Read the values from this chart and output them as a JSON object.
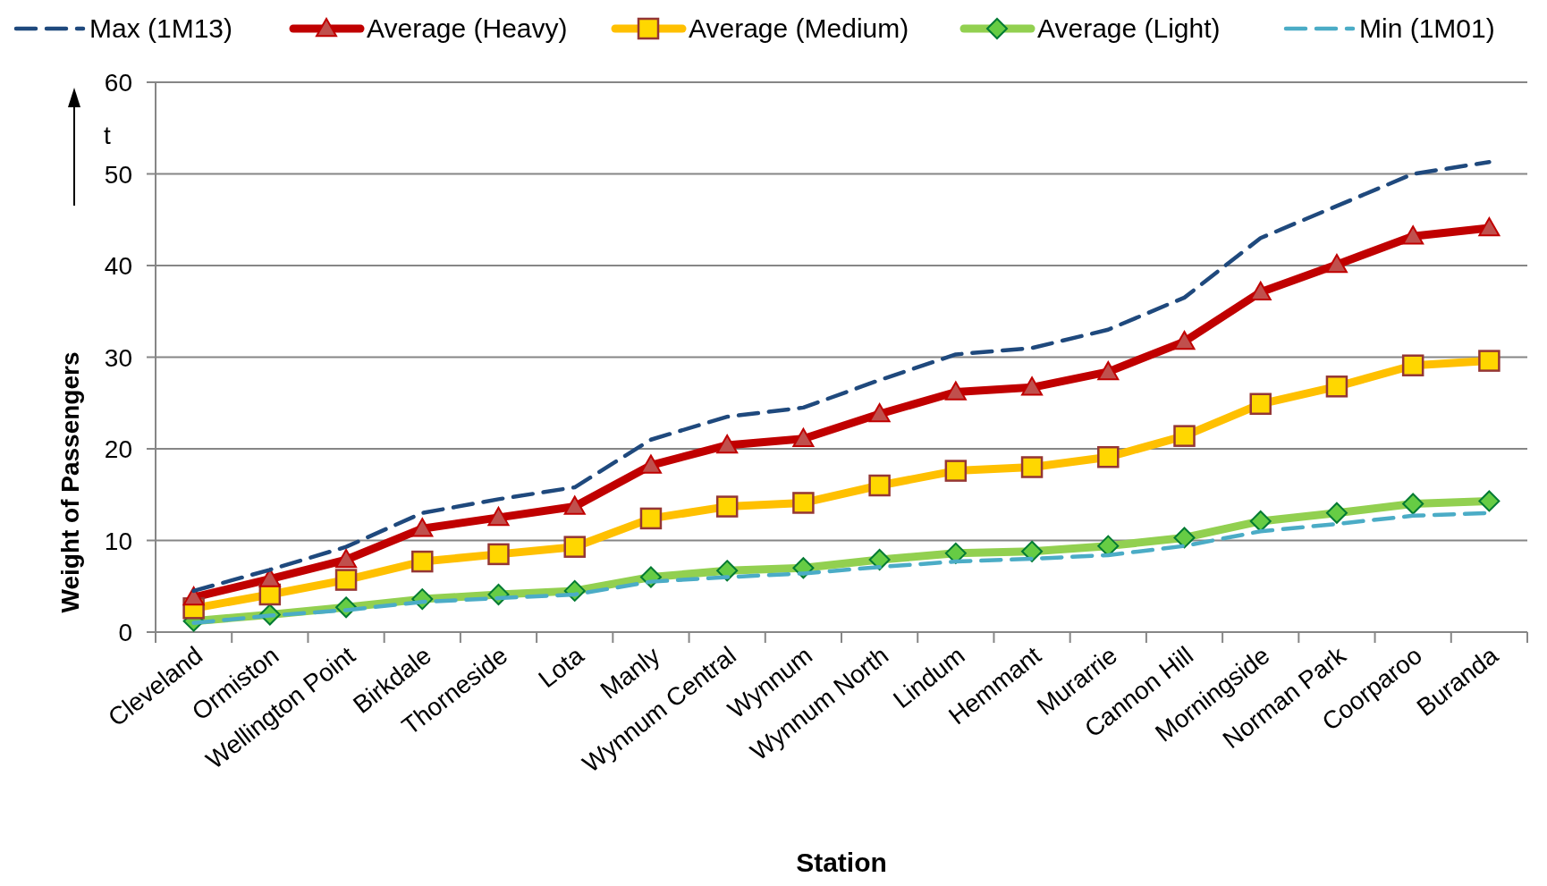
{
  "chart_data": {
    "type": "line",
    "xlabel": "Station",
    "ylabel": "Weight of Passengers",
    "annotations": [
      "t"
    ],
    "categories": [
      "Cleveland",
      "Ormiston",
      "Wellington Point",
      "Birkdale",
      "Thorneside",
      "Lota",
      "Manly",
      "Wynnum Central",
      "Wynnum",
      "Wynnum North",
      "Lindum",
      "Hemmant",
      "Murarrie",
      "Cannon Hill",
      "Morningside",
      "Norman Park",
      "Coorparoo",
      "Buranda"
    ],
    "series": [
      {
        "name": "Max (1M13)",
        "color": "#1f497d",
        "line_style": "dashed",
        "marker": "none",
        "values": [
          4.5,
          6.8,
          9.3,
          13,
          14.5,
          15.8,
          21,
          23.5,
          24.5,
          27.5,
          30.3,
          31,
          33,
          36.5,
          43,
          46.5,
          50,
          51.3
        ]
      },
      {
        "name": "Average (Heavy)",
        "color": "#c00000",
        "line_style": "solid",
        "marker": "triangle",
        "values": [
          3.8,
          5.8,
          7.9,
          11.3,
          12.5,
          13.7,
          18.2,
          20.4,
          21.1,
          23.8,
          26.2,
          26.7,
          28.4,
          31.7,
          37.1,
          40.1,
          43.2,
          44.1
        ]
      },
      {
        "name": "Average (Medium)",
        "color": "#ffc000",
        "line_style": "solid",
        "marker": "square",
        "values": [
          2.6,
          4.1,
          5.7,
          7.7,
          8.5,
          9.3,
          12.4,
          13.7,
          14.1,
          16,
          17.6,
          18,
          19.1,
          21.4,
          24.9,
          26.8,
          29.1,
          29.6
        ]
      },
      {
        "name": "Average (Light)",
        "color": "#92d050",
        "line_style": "solid",
        "marker": "diamond",
        "values": [
          1.2,
          1.9,
          2.7,
          3.6,
          4.1,
          4.5,
          6,
          6.7,
          7,
          7.9,
          8.6,
          8.8,
          9.4,
          10.3,
          12.1,
          13,
          14,
          14.3
        ]
      },
      {
        "name": "Min (1M01)",
        "color": "#4bacc6",
        "line_style": "dashed",
        "marker": "none",
        "values": [
          1,
          1.8,
          2.4,
          3.3,
          3.7,
          4.1,
          5.5,
          6,
          6.4,
          7.1,
          7.7,
          8,
          8.4,
          9.4,
          11,
          11.8,
          12.7,
          13
        ]
      }
    ],
    "ylim": [
      0,
      60
    ],
    "yticks": [
      0,
      10,
      20,
      30,
      40,
      50,
      60
    ],
    "grid": "y",
    "legend": "top"
  }
}
